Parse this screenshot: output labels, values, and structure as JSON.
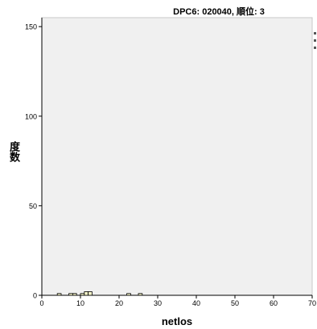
{
  "chart_data": {
    "type": "bar",
    "title": "DPC6: 020040, 順位: 3",
    "xlabel": "netlos",
    "ylabel": "度数",
    "xlim": [
      0,
      70
    ],
    "ylim": [
      0,
      155
    ],
    "x_ticks": [
      0,
      10,
      20,
      30,
      40,
      50,
      60,
      70
    ],
    "y_ticks": [
      0,
      50,
      100,
      150
    ],
    "bin_width": 1,
    "bins": [
      {
        "x0": 4,
        "x1": 5,
        "count": 1
      },
      {
        "x0": 7,
        "x1": 8,
        "count": 1
      },
      {
        "x0": 8,
        "x1": 9,
        "count": 1
      },
      {
        "x0": 10,
        "x1": 11,
        "count": 1
      },
      {
        "x0": 11,
        "x1": 12,
        "count": 2
      },
      {
        "x0": 12,
        "x1": 13,
        "count": 2
      },
      {
        "x0": 22,
        "x1": 23,
        "count": 1
      },
      {
        "x0": 25,
        "x1": 26,
        "count": 1
      }
    ],
    "grid": false,
    "legend": "right",
    "colors": {
      "plot_background": "#f0f0f0",
      "bar_fill": "#f2f2c8",
      "bar_edge": "#000000",
      "axis": "#000000"
    }
  }
}
